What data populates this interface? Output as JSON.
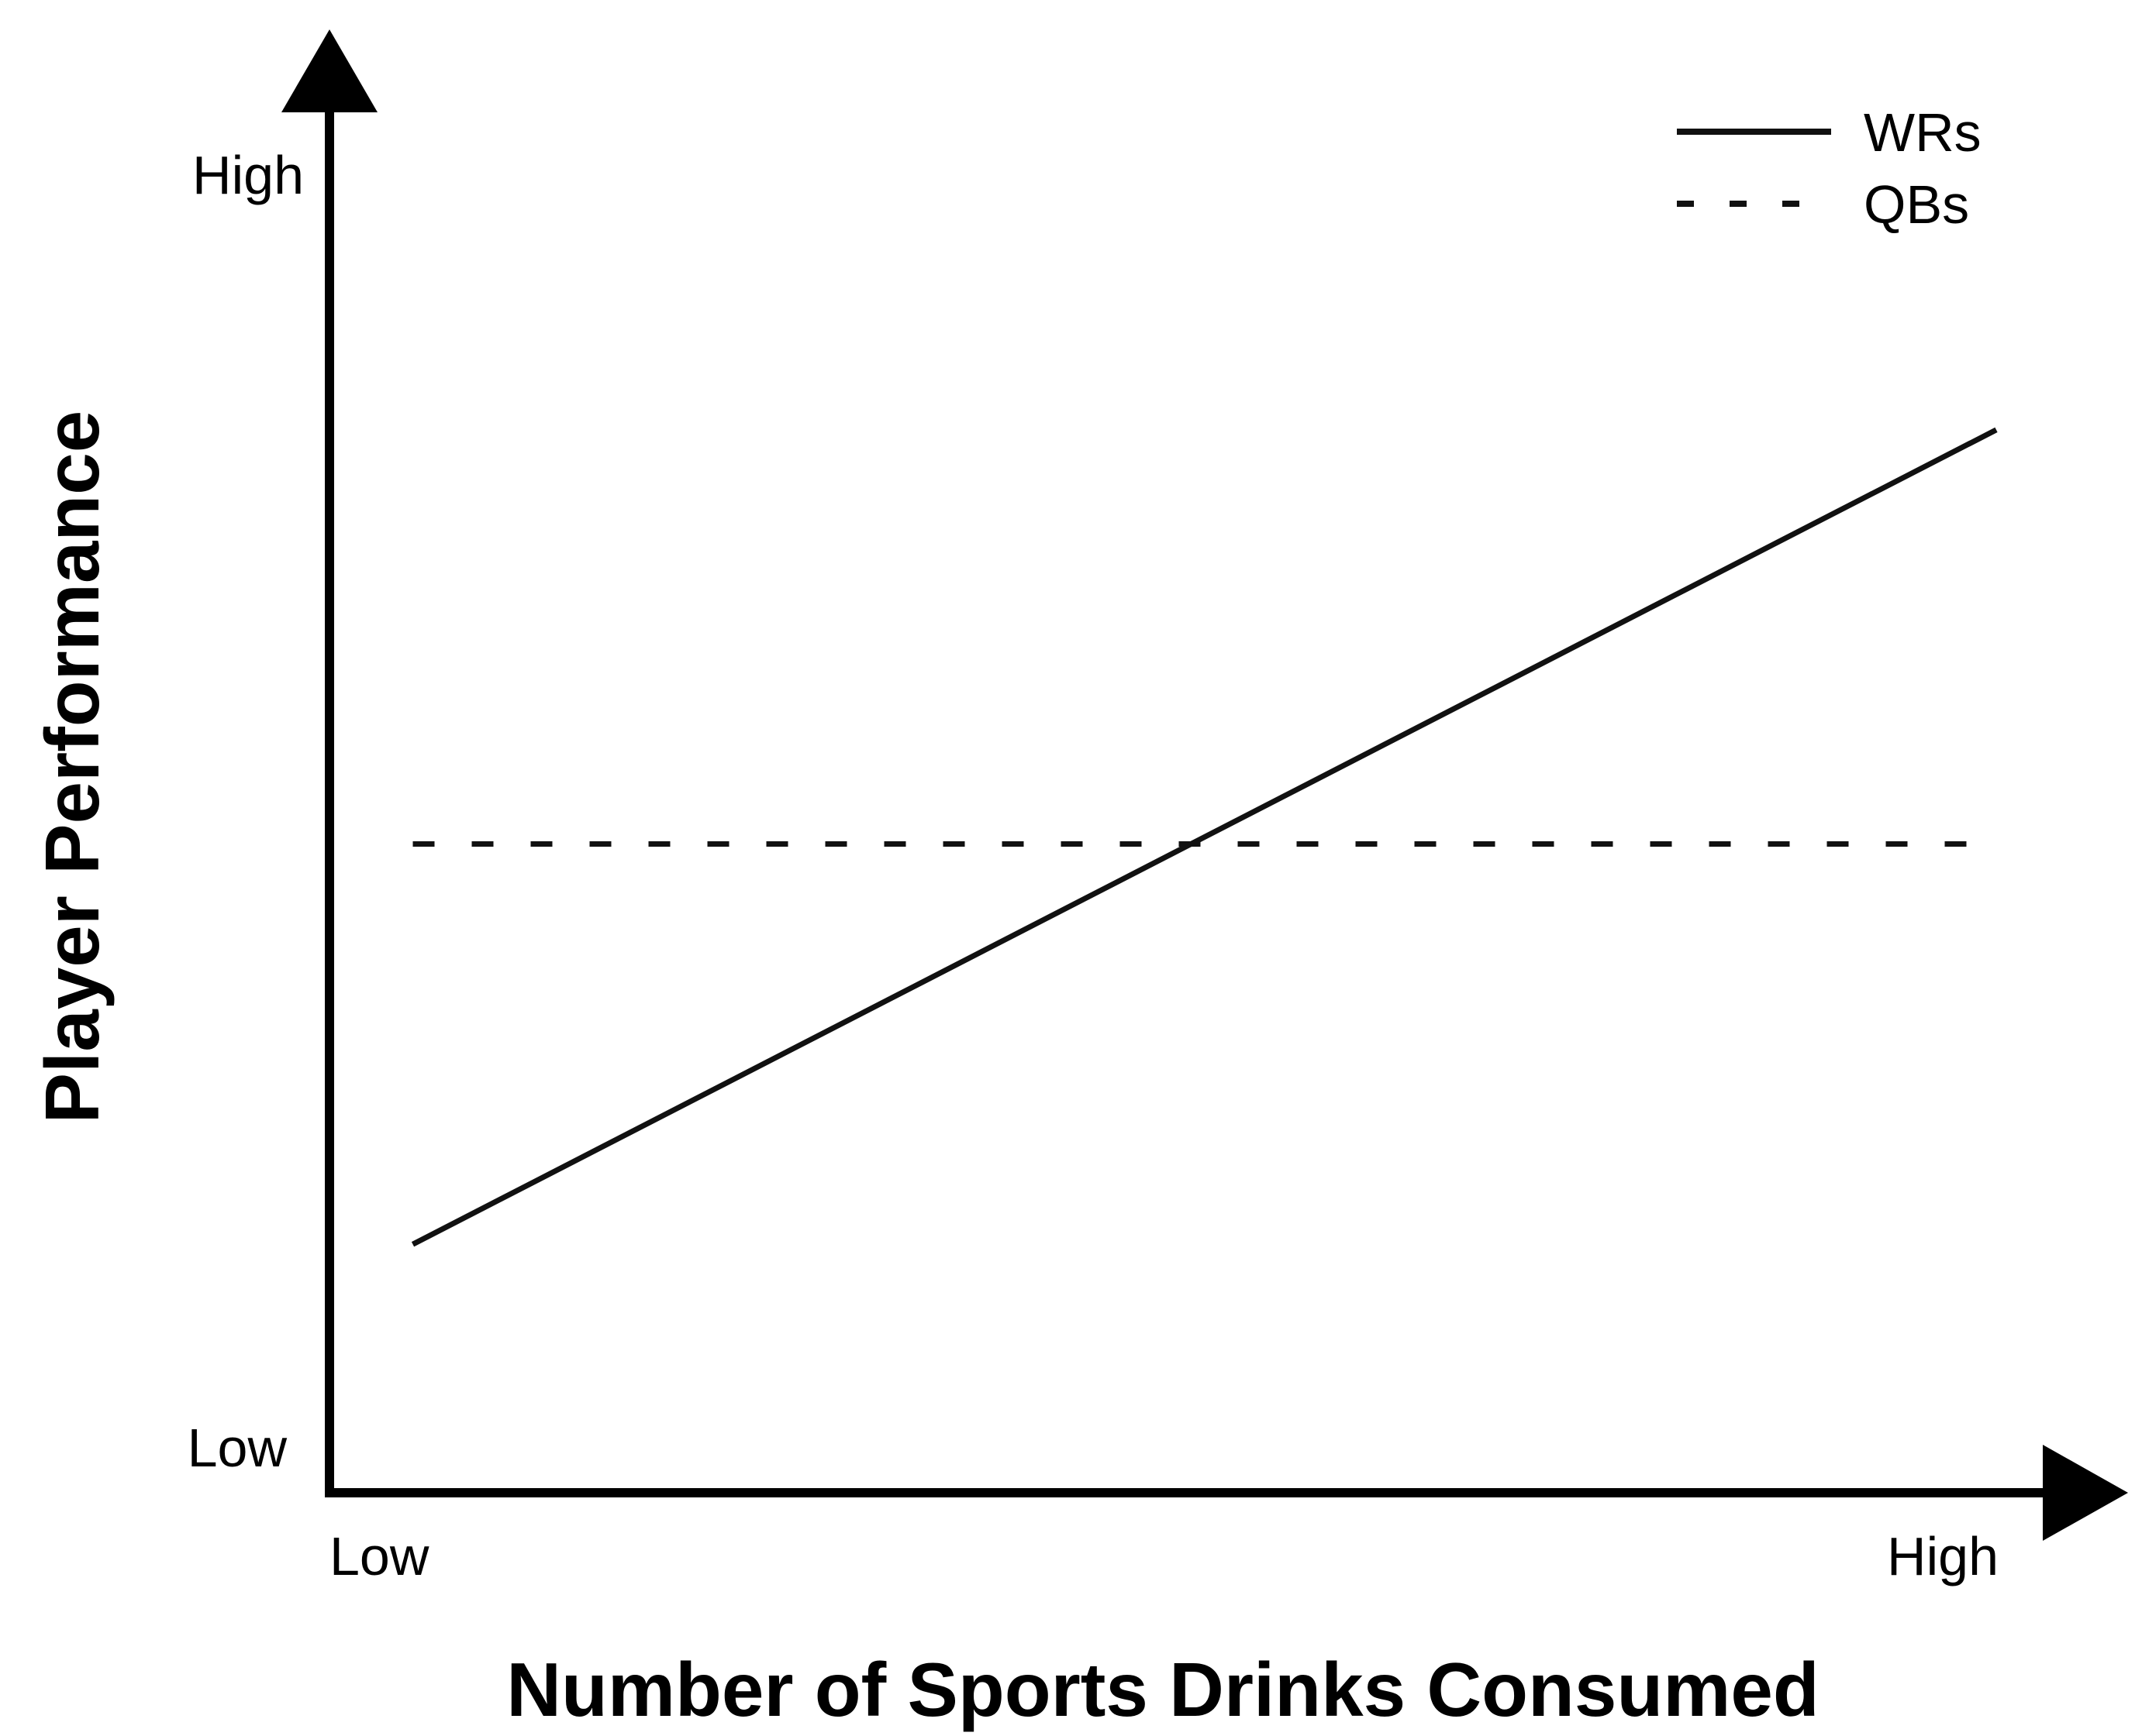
{
  "chart_data": {
    "type": "line",
    "title": "",
    "xlabel": "Number of Sports Drinks Consumed",
    "ylabel": "Player Performance",
    "xlim": [
      0,
      1
    ],
    "ylim": [
      0,
      1
    ],
    "x_ticks": [
      {
        "value": 0,
        "label": "Low"
      },
      {
        "value": 1,
        "label": "High"
      }
    ],
    "y_ticks": [
      {
        "value": 0,
        "label": "Low"
      },
      {
        "value": 1,
        "label": "High"
      }
    ],
    "series": [
      {
        "name": "WRs",
        "style": "solid",
        "color": "#111111",
        "x": [
          0.05,
          1.0
        ],
        "y": [
          0.18,
          0.77
        ]
      },
      {
        "name": "QBs",
        "style": "dashed",
        "color": "#111111",
        "x": [
          0.05,
          1.0
        ],
        "y": [
          0.47,
          0.47
        ]
      }
    ],
    "grid": false,
    "legend_position": "top-right"
  }
}
